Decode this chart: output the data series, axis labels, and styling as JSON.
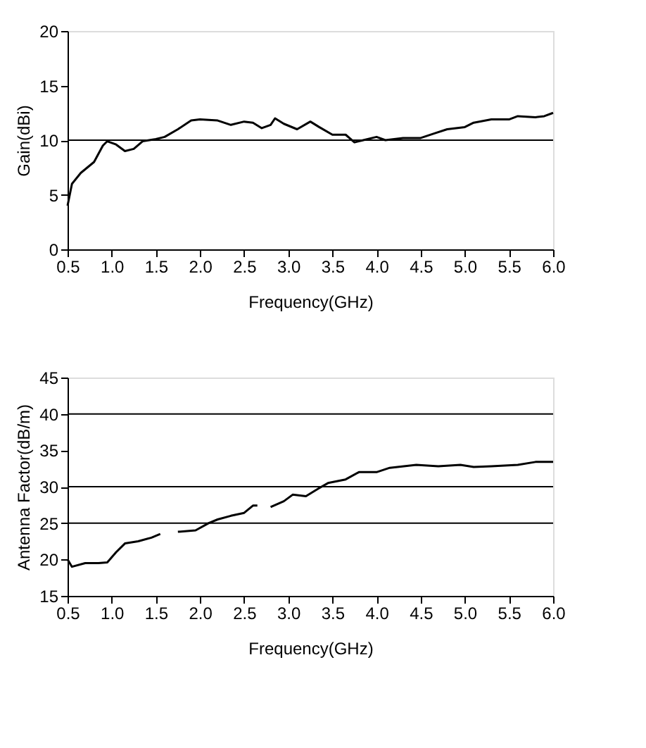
{
  "chart_data": [
    {
      "type": "line",
      "xlabel": "Frequency(GHz)",
      "ylabel": "Gain(dBi)",
      "x": [
        0.5,
        0.55,
        0.65,
        0.8,
        0.9,
        0.95,
        1.05,
        1.15,
        1.25,
        1.35,
        1.5,
        1.6,
        1.75,
        1.9,
        2.0,
        2.2,
        2.35,
        2.5,
        2.6,
        2.7,
        2.8,
        2.85,
        2.95,
        3.1,
        3.25,
        3.35,
        3.5,
        3.65,
        3.75,
        3.85,
        4.0,
        4.1,
        4.3,
        4.5,
        4.65,
        4.8,
        5.0,
        5.1,
        5.3,
        5.5,
        5.6,
        5.8,
        5.9,
        6.0
      ],
      "series": [
        {
          "color": "#000000",
          "values": [
            4,
            6,
            7,
            8,
            9.5,
            9.9,
            9.6,
            9.0,
            9.2,
            9.9,
            10.1,
            10.3,
            11.0,
            11.8,
            11.9,
            11.8,
            11.4,
            11.7,
            11.6,
            11.1,
            11.4,
            12.0,
            11.5,
            11.0,
            11.7,
            11.2,
            10.5,
            10.5,
            9.8,
            10.0,
            10.3,
            10.0,
            10.2,
            10.2,
            10.6,
            11.0,
            11.2,
            11.6,
            11.9,
            11.9,
            12.2,
            12.1,
            12.2,
            12.5
          ]
        }
      ],
      "xlim": [
        0.5,
        6.0
      ],
      "xticks": [
        0.5,
        {
          "value": 1,
          "label": "1.0"
        },
        1.5,
        {
          "value": 2,
          "label": "2.0"
        },
        2.5,
        {
          "value": 3,
          "label": "3.0"
        },
        3.5,
        {
          "value": 4,
          "label": "4.0"
        },
        4.5,
        {
          "value": 5,
          "label": "5.0"
        },
        5.5,
        {
          "value": 6,
          "label": "6.0"
        }
      ],
      "ylim": [
        0,
        20
      ],
      "yticks": [
        0,
        5,
        10,
        15,
        20
      ],
      "ref_lines": [
        {
          "axis": "y",
          "value": 10,
          "color": "#000000"
        }
      ],
      "grid": false,
      "marker": "none",
      "line_style": "solid"
    },
    {
      "type": "line",
      "xlabel": "Frequency(GHz)",
      "ylabel": "Antenna Factor(dB/m)",
      "x": [
        0.5,
        0.55,
        0.7,
        0.85,
        0.95,
        1.05,
        1.15,
        1.3,
        1.45,
        1.55,
        1.65,
        1.75,
        1.95,
        2.1,
        2.2,
        2.35,
        2.5,
        2.6,
        2.65,
        2.72,
        2.8,
        2.95,
        3.05,
        3.2,
        3.35,
        3.45,
        3.65,
        3.8,
        4.0,
        4.15,
        4.45,
        4.7,
        4.95,
        5.1,
        5.3,
        5.6,
        5.8,
        6.0
      ],
      "series": [
        {
          "color": "#000000",
          "values": [
            20,
            19,
            19.5,
            19.5,
            19.6,
            21,
            22.2,
            22.5,
            23,
            23.5,
            null,
            23.8,
            24,
            25,
            25.5,
            26,
            26.4,
            27.4,
            27.4,
            null,
            27.2,
            28,
            28.9,
            28.7,
            29.8,
            30.5,
            31,
            32,
            32,
            32.6,
            33,
            32.8,
            33,
            32.7,
            32.8,
            33,
            33.4,
            33.4
          ]
        }
      ],
      "xlim": [
        0.5,
        6.0
      ],
      "xticks": [
        0.5,
        {
          "value": 1,
          "label": "1.0"
        },
        1.5,
        {
          "value": 2,
          "label": "2.0"
        },
        2.5,
        {
          "value": 3,
          "label": "3.0"
        },
        3.5,
        {
          "value": 4,
          "label": "4.0"
        },
        4.5,
        {
          "value": 5,
          "label": "5.0"
        },
        5.5,
        {
          "value": 6,
          "label": "6.0"
        }
      ],
      "ylim": [
        15,
        45
      ],
      "yticks": [
        15,
        20,
        25,
        30,
        35,
        40,
        45
      ],
      "ref_lines": [
        {
          "axis": "y",
          "value": 25,
          "color": "#000000"
        },
        {
          "axis": "y",
          "value": 30,
          "color": "#000000"
        },
        {
          "axis": "y",
          "value": 40,
          "color": "#000000"
        }
      ],
      "grid": false,
      "marker": "none",
      "line_style": "solid"
    }
  ]
}
